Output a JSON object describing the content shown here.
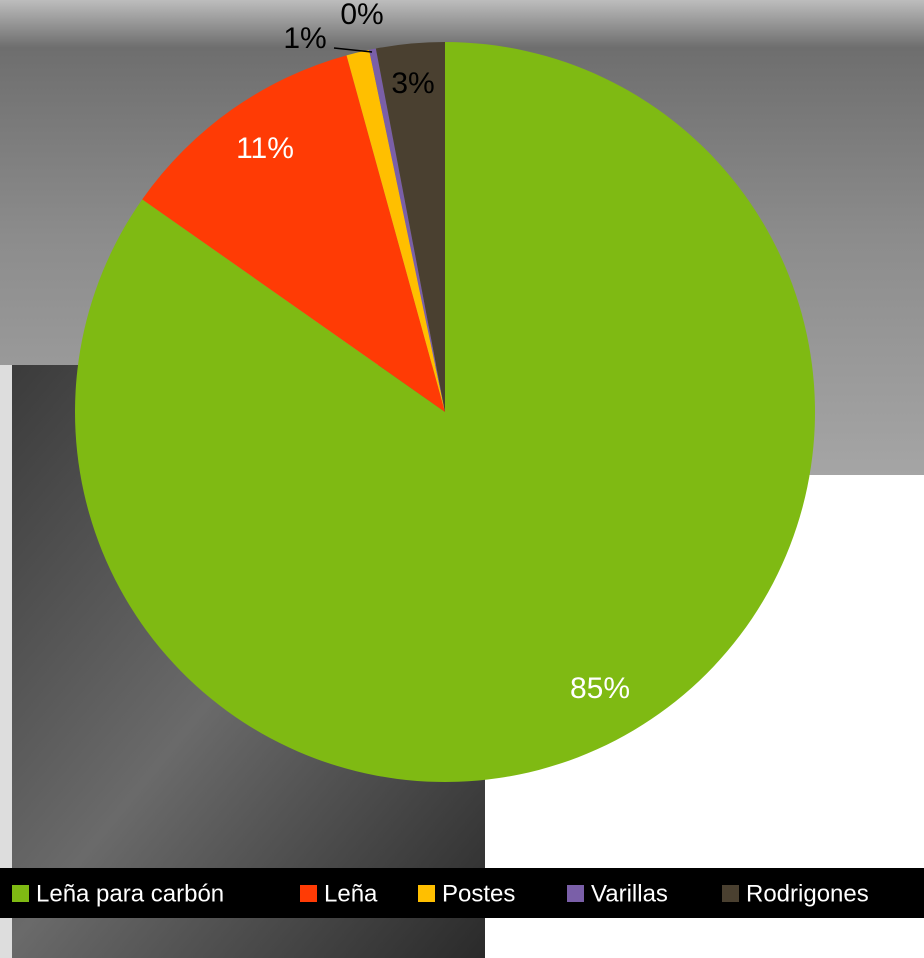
{
  "chart_data": {
    "type": "pie",
    "categories": [
      "Leña para carbón",
      "Leña",
      "Postes",
      "Varillas",
      "Rodrigones"
    ],
    "values": [
      85,
      11,
      1,
      0.3,
      3
    ],
    "value_labels": [
      "85%",
      "11%",
      "1%",
      "0%",
      "3%"
    ],
    "colors": [
      "#7fba13",
      "#ff3b05",
      "#ffbf00",
      "#7a5fa8",
      "#4a4030"
    ],
    "legend": "bottom"
  }
}
